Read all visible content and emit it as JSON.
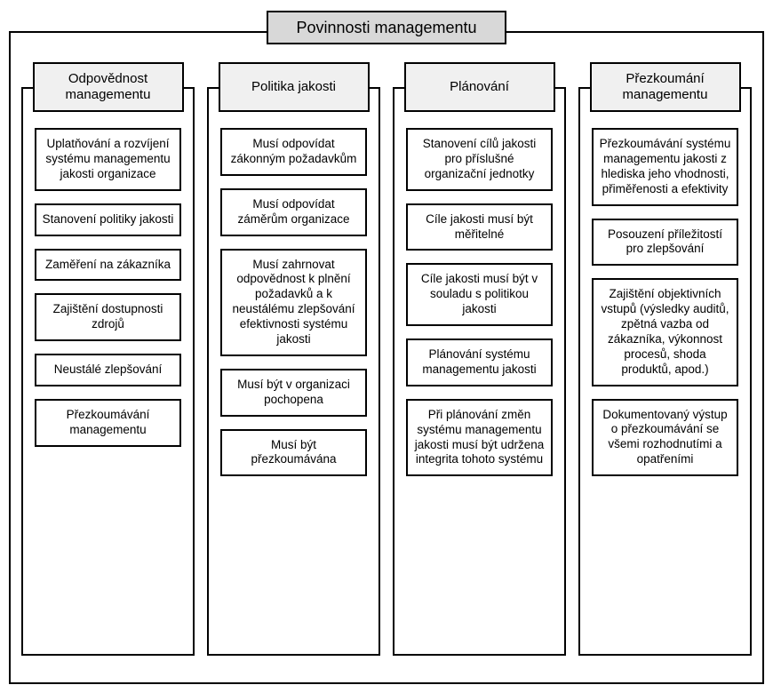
{
  "diagram": {
    "type": "tree",
    "title": "Povinnosti managementu",
    "title_bg": "#d8d8d8",
    "header_bg": "#f0f0f0",
    "border_color": "#000000",
    "background_color": "#ffffff",
    "font_family": "Arial",
    "title_fontsize": 18,
    "header_fontsize": 15,
    "item_fontsize": 13.5,
    "columns": [
      {
        "header": "Odpovědnost managementu",
        "items": [
          "Uplatňování a rozvíjení systému managementu jakosti organizace",
          "Stanovení politiky jakosti",
          "Zaměření na zákazníka",
          "Zajištění dostupnosti zdrojů",
          "Neustálé zlepšování",
          "Přezkoumávání managementu"
        ]
      },
      {
        "header": "Politika jakosti",
        "items": [
          "Musí odpovídat zákonným požadavkům",
          "Musí odpovídat záměrům organizace",
          "Musí zahrnovat odpovědnost k plnění požadavků a k neustálému zlepšování efektivnosti systému jakosti",
          "Musí být v organizaci pochopena",
          "Musí být přezkoumávána"
        ]
      },
      {
        "header": "Plánování",
        "items": [
          "Stanovení cílů jakosti pro příslušné organizační jednotky",
          "Cíle jakosti musí být měřitelné",
          "Cíle jakosti musí být v souladu s politikou jakosti",
          "Plánování systému managementu jakosti",
          "Při plánování změn systému managementu jakosti musí být udržena integrita tohoto systému"
        ]
      },
      {
        "header": "Přezkoumání managementu",
        "items": [
          "Přezkoumávání systému managementu jakosti z hlediska jeho vhodnosti, přiměřenosti a efektivity",
          "Posouzení příležitostí pro zlepšování",
          "Zajištění objektivních vstupů (výsledky auditů, zpětná vazba od zákazníka, výkonnost procesů, shoda produktů, apod.)",
          "Dokumentovaný výstup o přezkoumávání se všemi rozhodnutími a opatřeními"
        ]
      }
    ]
  }
}
